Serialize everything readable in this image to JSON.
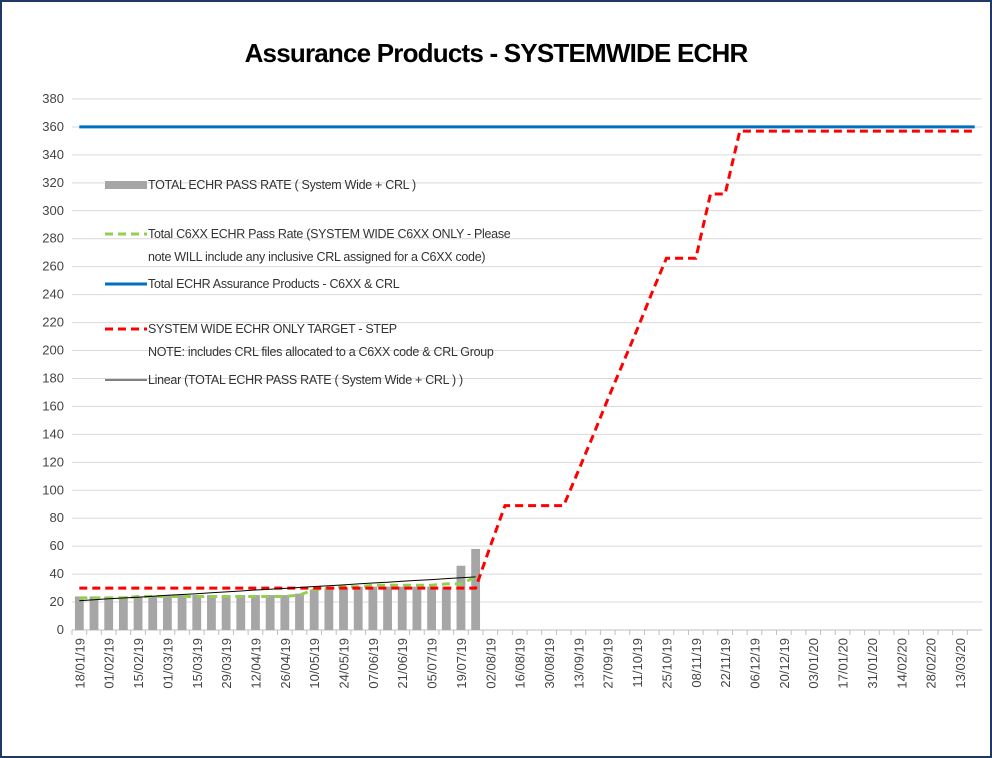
{
  "chart_data": {
    "type": "combo",
    "title": "Assurance Products - SYSTEMWIDE ECHR",
    "categories": [
      "18/01/19",
      null,
      "01/02/19",
      null,
      "15/02/19",
      null,
      "01/03/19",
      null,
      "15/03/19",
      null,
      "29/03/19",
      null,
      "12/04/19",
      null,
      "26/04/19",
      null,
      "10/05/19",
      null,
      "24/05/19",
      null,
      "07/06/19",
      null,
      "21/06/19",
      null,
      "05/07/19",
      null,
      "19/07/19",
      null,
      "02/08/19",
      null,
      "16/08/19",
      null,
      "30/08/19",
      null,
      "13/09/19",
      null,
      "27/09/19",
      null,
      "11/10/19",
      null,
      "25/10/19",
      null,
      "08/11/19",
      null,
      "22/11/19",
      null,
      "06/12/19",
      null,
      "20/12/19",
      null,
      "03/01/20",
      null,
      "17/01/20",
      null,
      "31/01/20",
      null,
      "14/02/20",
      null,
      "28/02/20",
      null,
      "13/03/20",
      null
    ],
    "series": [
      {
        "name": "TOTAL ECHR PASS RATE ( System Wide + CRL )",
        "type": "bar",
        "color": "#a6a6a6",
        "values": [
          24,
          24,
          24,
          24,
          24,
          24,
          25,
          25,
          25,
          25,
          25,
          25,
          25,
          25,
          25,
          26,
          29,
          30,
          30,
          31,
          31,
          31,
          31,
          31,
          31,
          31,
          46,
          58,
          null,
          null,
          null,
          null,
          null,
          null,
          null,
          null,
          null,
          null,
          null,
          null,
          null,
          null,
          null,
          null,
          null,
          null,
          null,
          null,
          null,
          null,
          null,
          null,
          null,
          null,
          null,
          null,
          null,
          null,
          null,
          null,
          null,
          null
        ]
      },
      {
        "name": "Total C6XX ECHR Pass Rate (SYSTEM WIDE C6XX ONLY - Please note WILL include any inclusive CRL assigned for a C6XX code)",
        "type": "line",
        "dashed": true,
        "color": "#92d050",
        "values": [
          23,
          23,
          23,
          23,
          24,
          24,
          24,
          24,
          24,
          24,
          24,
          24,
          24,
          24,
          24,
          25,
          29,
          30,
          31,
          31,
          32,
          32,
          32,
          32,
          32,
          33,
          33,
          38,
          null,
          null,
          null,
          null,
          null,
          null,
          null,
          null,
          null,
          null,
          null,
          null,
          null,
          null,
          null,
          null,
          null,
          null,
          null,
          null,
          null,
          null,
          null,
          null,
          null,
          null,
          null,
          null,
          null,
          null,
          null,
          null,
          null,
          null
        ]
      },
      {
        "name": "Total ECHR Assurance Products - C6XX & CRL",
        "type": "line",
        "dashed": false,
        "color": "#0070c0",
        "values": [
          360,
          360,
          360,
          360,
          360,
          360,
          360,
          360,
          360,
          360,
          360,
          360,
          360,
          360,
          360,
          360,
          360,
          360,
          360,
          360,
          360,
          360,
          360,
          360,
          360,
          360,
          360,
          360,
          360,
          360,
          360,
          360,
          360,
          360,
          360,
          360,
          360,
          360,
          360,
          360,
          360,
          360,
          360,
          360,
          360,
          360,
          360,
          360,
          360,
          360,
          360,
          360,
          360,
          360,
          360,
          360,
          360,
          360,
          360,
          360,
          360,
          360
        ]
      },
      {
        "name": "SYSTEM WIDE ECHR ONLY TARGET - STEP\n NOTE: includes CRL files allocated to a C6XX code & CRL Group",
        "type": "line",
        "dashed": true,
        "color": "#ff0000",
        "values": [
          30,
          30,
          30,
          30,
          30,
          30,
          30,
          30,
          30,
          30,
          30,
          30,
          30,
          30,
          30,
          30,
          30,
          30,
          30,
          30,
          30,
          30,
          30,
          30,
          30,
          30,
          30,
          30,
          60,
          89,
          89,
          89,
          89,
          89,
          114,
          139,
          165,
          190,
          215,
          241,
          266,
          266,
          266,
          312,
          312,
          357,
          357,
          357,
          357,
          357,
          357,
          357,
          357,
          357,
          357,
          357,
          357,
          357,
          357,
          357,
          357,
          357
        ]
      },
      {
        "name": "Linear (TOTAL ECHR PASS RATE ( System Wide + CRL ) )",
        "type": "line",
        "dashed": false,
        "color": "#000000",
        "values": [
          21,
          21.6,
          22.3,
          22.9,
          23.5,
          24.1,
          24.8,
          25.4,
          26,
          26.7,
          27.3,
          27.9,
          28.6,
          29.2,
          29.8,
          30.4,
          31.1,
          31.7,
          32.3,
          33,
          33.6,
          34.2,
          34.9,
          35.5,
          36.1,
          36.8,
          37.4,
          38,
          null,
          null,
          null,
          null,
          null,
          null,
          null,
          null,
          null,
          null,
          null,
          null,
          null,
          null,
          null,
          null,
          null,
          null,
          null,
          null,
          null,
          null,
          null,
          null,
          null,
          null,
          null,
          null,
          null,
          null,
          null,
          null,
          null,
          null
        ]
      }
    ],
    "ylim": [
      0,
      380
    ],
    "yticks": [
      0,
      20,
      40,
      60,
      80,
      100,
      120,
      140,
      160,
      180,
      200,
      220,
      240,
      260,
      280,
      300,
      320,
      340,
      360,
      380
    ],
    "grid": true
  }
}
